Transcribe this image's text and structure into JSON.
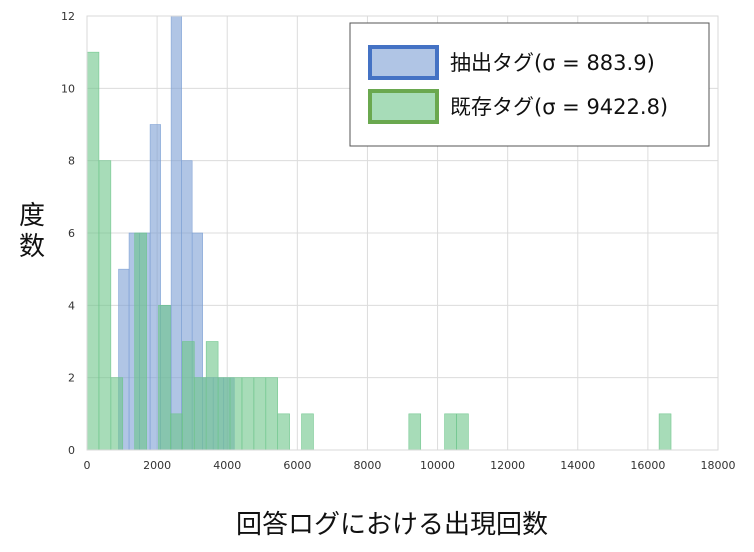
{
  "chart_data": {
    "type": "bar",
    "title": "",
    "xlabel": "回答ログにおける出現回数",
    "ylabel": "度数",
    "xlim": [
      0,
      18000
    ],
    "ylim": [
      0,
      12
    ],
    "xticks": [
      "0",
      "2000",
      "4000",
      "6000",
      "8000",
      "10000",
      "12000",
      "14000",
      "16000",
      "18000"
    ],
    "yticks": [
      "0",
      "2",
      "4",
      "6",
      "8",
      "10",
      "12"
    ],
    "grid": true,
    "legend_position": "top-right",
    "series": [
      {
        "name": "抽出タグ(σ = 883.9)",
        "color": "#7b9fd4",
        "border": "#4472c4",
        "bin_width": 300,
        "bins": [
          {
            "x0": 0,
            "x1": 900,
            "count": 0
          },
          {
            "x0": 900,
            "x1": 1200,
            "count": 5
          },
          {
            "x0": 1200,
            "x1": 1500,
            "count": 6
          },
          {
            "x0": 1500,
            "x1": 1800,
            "count": 6
          },
          {
            "x0": 1800,
            "x1": 2100,
            "count": 9
          },
          {
            "x0": 2100,
            "x1": 2400,
            "count": 4
          },
          {
            "x0": 2400,
            "x1": 2700,
            "count": 12
          },
          {
            "x0": 2700,
            "x1": 3000,
            "count": 8
          },
          {
            "x0": 3000,
            "x1": 3300,
            "count": 6
          },
          {
            "x0": 3300,
            "x1": 3600,
            "count": 2
          },
          {
            "x0": 3600,
            "x1": 3900,
            "count": 2
          },
          {
            "x0": 3900,
            "x1": 4200,
            "count": 2
          }
        ]
      },
      {
        "name": "既存タグ(σ = 9422.8)",
        "color": "#6cc489",
        "border": "#6aa84f",
        "bin_width": 340,
        "bins": [
          {
            "x0": 0,
            "x1": 340,
            "count": 11
          },
          {
            "x0": 340,
            "x1": 680,
            "count": 8
          },
          {
            "x0": 680,
            "x1": 1020,
            "count": 2
          },
          {
            "x0": 1020,
            "x1": 1360,
            "count": 0
          },
          {
            "x0": 1360,
            "x1": 1700,
            "count": 6
          },
          {
            "x0": 1700,
            "x1": 2040,
            "count": 0
          },
          {
            "x0": 2040,
            "x1": 2380,
            "count": 4
          },
          {
            "x0": 2380,
            "x1": 2720,
            "count": 1
          },
          {
            "x0": 2720,
            "x1": 3060,
            "count": 3
          },
          {
            "x0": 3060,
            "x1": 3400,
            "count": 2
          },
          {
            "x0": 3400,
            "x1": 3740,
            "count": 3
          },
          {
            "x0": 3740,
            "x1": 4080,
            "count": 2
          },
          {
            "x0": 4080,
            "x1": 4420,
            "count": 2
          },
          {
            "x0": 4420,
            "x1": 4760,
            "count": 2
          },
          {
            "x0": 4760,
            "x1": 5100,
            "count": 2
          },
          {
            "x0": 5100,
            "x1": 5440,
            "count": 2
          },
          {
            "x0": 5440,
            "x1": 5780,
            "count": 1
          },
          {
            "x0": 6120,
            "x1": 6460,
            "count": 1
          },
          {
            "x0": 9180,
            "x1": 9520,
            "count": 1
          },
          {
            "x0": 10200,
            "x1": 10540,
            "count": 1
          },
          {
            "x0": 10540,
            "x1": 10880,
            "count": 1
          },
          {
            "x0": 16320,
            "x1": 16660,
            "count": 1
          }
        ]
      }
    ]
  }
}
